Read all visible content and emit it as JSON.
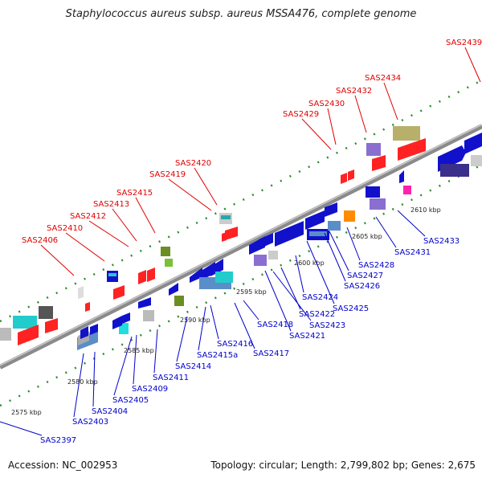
{
  "title": "Staphylococcus aureus subsp. aureus MSSA476, complete genome",
  "accession": "Accession: NC_002953",
  "topology": "Topology: circular; Length: 2,799,802 bp; Genes: 2,675",
  "colors": {
    "top_label": "#e00000",
    "bottom_label": "#0000cc",
    "backbone": "#8a8a8a",
    "tick_mark": "#2e8b2e"
  },
  "kbp_ticks": [
    "2575 kbp",
    "2580 kbp",
    "2585 kbp",
    "2590 kbp",
    "2595 kbp",
    "2600 kbp",
    "2605 kbp",
    "2610 kbp"
  ],
  "top_labels": [
    "SAS2406",
    "SAS2410",
    "SAS2412",
    "SAS2413",
    "SAS2415",
    "SAS2419",
    "SAS2420",
    "SAS2429",
    "SAS2430",
    "SAS2432",
    "SAS2434",
    "SAS2439"
  ],
  "bottom_labels": [
    "SAS2397",
    "SAS2403",
    "SAS2404",
    "SAS2405",
    "SAS2409",
    "SAS2411",
    "SAS2414",
    "SAS2415a",
    "SAS2416",
    "SAS2417",
    "SAS2418",
    "SAS2421",
    "SAS2423",
    "SAS2422",
    "SAS2425",
    "SAS2424",
    "SAS2426",
    "SAS2427",
    "SAS2428",
    "SAS2431",
    "SAS2433"
  ]
}
